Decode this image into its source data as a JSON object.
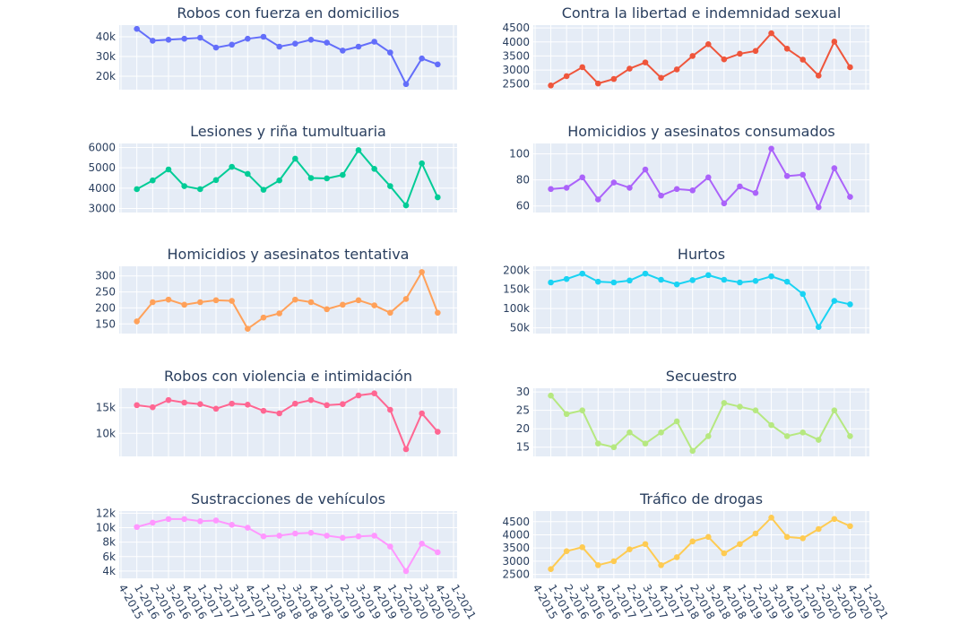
{
  "categories": [
    "4-2015",
    "1-2016",
    "2-2016",
    "3-2016",
    "4-2016",
    "1-2017",
    "2-2017",
    "3-2017",
    "4-2017",
    "1-2018",
    "2-2018",
    "3-2018",
    "4-2018",
    "1-2019",
    "2-2019",
    "3-2019",
    "4-2019",
    "1-2020",
    "2-2020",
    "3-2020",
    "4-2020",
    "1-2021"
  ],
  "chart_data": [
    {
      "type": "line",
      "title": "Robos con fuerza en domicilios",
      "color": "#636efa",
      "values": [
        null,
        44000,
        38000,
        38500,
        39000,
        39500,
        34500,
        36000,
        39000,
        40000,
        35000,
        36500,
        38500,
        37000,
        33000,
        35000,
        37500,
        32000,
        16000,
        29000,
        26000,
        null
      ],
      "ylim": [
        13200,
        45900
      ],
      "yticks": [
        {
          "value": 20000,
          "label": "20k"
        },
        {
          "value": 30000,
          "label": "30k"
        },
        {
          "value": 40000,
          "label": "40k"
        }
      ]
    },
    {
      "type": "line",
      "title": "Contra la libertad e indemnidad sexual",
      "color": "#ef553b",
      "values": [
        null,
        2450,
        2780,
        3100,
        2520,
        2680,
        3050,
        3270,
        2720,
        3020,
        3500,
        3920,
        3380,
        3580,
        3680,
        4310,
        3760,
        3370,
        2800,
        4010,
        3100,
        null
      ],
      "ylim": [
        2300,
        4600
      ],
      "yticks": [
        2500,
        3000,
        3500,
        4000,
        4500
      ]
    },
    {
      "type": "line",
      "title": "Lesiones y riña tumultuaria",
      "color": "#00cc96",
      "values": [
        null,
        3950,
        4380,
        4920,
        4100,
        3950,
        4400,
        5050,
        4700,
        3920,
        4380,
        5450,
        4500,
        4480,
        4650,
        5870,
        4950,
        4100,
        3150,
        5220,
        3550,
        null
      ],
      "ylim": [
        2800,
        6200
      ],
      "yticks": [
        3000,
        4000,
        5000,
        6000
      ]
    },
    {
      "type": "line",
      "title": "Homicidios y asesinatos consumados",
      "color": "#ab63fa",
      "values": [
        null,
        73,
        74,
        82,
        65,
        78,
        74,
        88,
        68,
        73,
        72,
        82,
        62,
        75,
        70,
        104,
        83,
        84,
        59,
        89,
        67,
        null
      ],
      "ylim": [
        55,
        108
      ],
      "yticks": [
        60,
        80,
        100
      ]
    },
    {
      "type": "line",
      "title": "Homicidios y asesinatos tentativa",
      "color": "#FFA15A",
      "values": [
        null,
        158,
        218,
        226,
        210,
        218,
        224,
        222,
        135,
        170,
        183,
        226,
        218,
        196,
        210,
        224,
        208,
        185,
        228,
        312,
        185,
        null
      ],
      "ylim": [
        120,
        330
      ],
      "yticks": [
        150,
        200,
        250,
        300
      ]
    },
    {
      "type": "line",
      "title": "Hurtos",
      "color": "#19d3f3",
      "values": [
        null,
        168000,
        177000,
        191000,
        170000,
        168000,
        173000,
        191000,
        175000,
        163000,
        174000,
        187000,
        175000,
        168000,
        172000,
        184000,
        170000,
        138000,
        52000,
        120000,
        111000,
        null
      ],
      "ylim": [
        35000,
        210000
      ],
      "yticks": [
        {
          "value": 50000,
          "label": "50k"
        },
        {
          "value": 100000,
          "label": "100k"
        },
        {
          "value": 150000,
          "label": "150k"
        },
        {
          "value": 200000,
          "label": "200k"
        }
      ]
    },
    {
      "type": "line",
      "title": "Robos con violencia e intimidación",
      "color": "#FF6692",
      "values": [
        null,
        15500,
        15100,
        16500,
        16000,
        15700,
        14800,
        15800,
        15600,
        14400,
        13900,
        15800,
        16500,
        15500,
        15700,
        17400,
        17800,
        14600,
        6900,
        13900,
        10300,
        null
      ],
      "ylim": [
        5500,
        18800
      ],
      "yticks": [
        {
          "value": 10000,
          "label": "10k"
        },
        {
          "value": 15000,
          "label": "15k"
        }
      ]
    },
    {
      "type": "line",
      "title": "Secuestro",
      "color": "#B6E880",
      "values": [
        null,
        29,
        24,
        25,
        16,
        15,
        19,
        16,
        19,
        22,
        14,
        18,
        27,
        26,
        25,
        21,
        18,
        19,
        17,
        25,
        18,
        null
      ],
      "ylim": [
        12.5,
        31
      ],
      "yticks": [
        15,
        20,
        25,
        30
      ]
    },
    {
      "type": "line",
      "title": "Sustracciones de vehículos",
      "color": "#FF97FF",
      "values": [
        null,
        10100,
        10700,
        11200,
        11200,
        10900,
        11000,
        10400,
        10000,
        8800,
        8900,
        9200,
        9300,
        8900,
        8600,
        8800,
        8900,
        7400,
        4000,
        7800,
        6600,
        null
      ],
      "ylim": [
        3000,
        12300
      ],
      "yticks": [
        {
          "value": 4000,
          "label": "4k"
        },
        {
          "value": 6000,
          "label": "6k"
        },
        {
          "value": 8000,
          "label": "8k"
        },
        {
          "value": 10000,
          "label": "10k"
        },
        {
          "value": 12000,
          "label": "12k"
        }
      ]
    },
    {
      "type": "line",
      "title": "Tráfico de drogas",
      "color": "#FECB52",
      "values": [
        null,
        2700,
        3380,
        3530,
        2850,
        3000,
        3450,
        3650,
        2850,
        3150,
        3750,
        3920,
        3300,
        3650,
        4050,
        4650,
        3920,
        3870,
        4220,
        4600,
        4330,
        null
      ],
      "ylim": [
        2350,
        4900
      ],
      "yticks": [
        2500,
        3000,
        3500,
        4000,
        4500
      ]
    }
  ]
}
